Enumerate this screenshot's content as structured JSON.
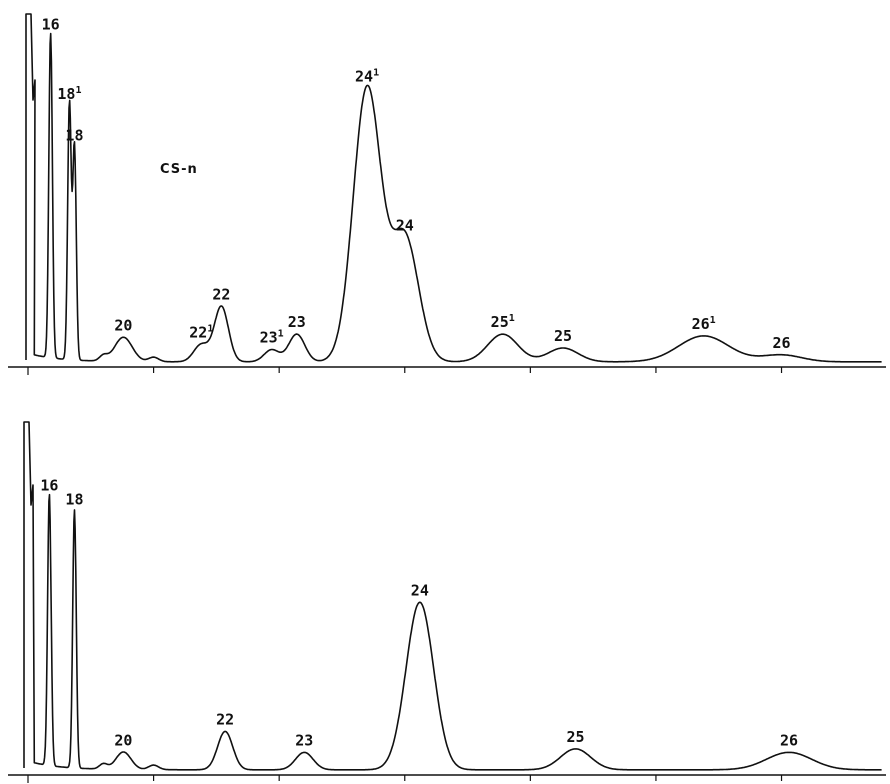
{
  "chart_data": [
    {
      "type": "line",
      "title": "",
      "xlabel": "",
      "ylabel": "",
      "annotation": "CS-n",
      "xlim": [
        0,
        34
      ],
      "ylim": [
        0,
        100
      ],
      "grid": false,
      "x_ticks": [
        5,
        10,
        15,
        20,
        25,
        30
      ],
      "peaks": [
        {
          "label": "16",
          "prime": "",
          "x": 0.9,
          "height": 94,
          "width": 0.07
        },
        {
          "label": "18",
          "prime": "1",
          "x": 1.65,
          "height": 74,
          "width": 0.07
        },
        {
          "label": "18",
          "prime": "",
          "x": 1.85,
          "height": 62,
          "width": 0.07
        },
        {
          "label": "20",
          "prime": "",
          "x": 3.8,
          "height": 7,
          "width": 0.35
        },
        {
          "label": "22",
          "prime": "1",
          "x": 6.9,
          "height": 5,
          "width": 0.3
        },
        {
          "label": "22",
          "prime": "",
          "x": 7.7,
          "height": 16,
          "width": 0.28
        },
        {
          "label": "23",
          "prime": "1",
          "x": 9.7,
          "height": 3.5,
          "width": 0.3
        },
        {
          "label": "23",
          "prime": "",
          "x": 10.7,
          "height": 8,
          "width": 0.32
        },
        {
          "label": "24",
          "prime": "1",
          "x": 13.5,
          "height": 79,
          "width": 0.55
        },
        {
          "label": "24",
          "prime": "",
          "x": 15.0,
          "height": 36,
          "width": 0.55
        },
        {
          "label": "25",
          "prime": "1",
          "x": 18.9,
          "height": 8,
          "width": 0.6
        },
        {
          "label": "25",
          "prime": "",
          "x": 21.3,
          "height": 4,
          "width": 0.6
        },
        {
          "label": "26",
          "prime": "1",
          "x": 26.9,
          "height": 7.5,
          "width": 1.0
        },
        {
          "label": "26",
          "prime": "",
          "x": 30.0,
          "height": 2,
          "width": 0.8
        }
      ]
    },
    {
      "type": "line",
      "title": "",
      "xlabel": "",
      "ylabel": "",
      "xlim": [
        0,
        34
      ],
      "ylim": [
        0,
        100
      ],
      "grid": false,
      "x_ticks": [
        5,
        10,
        15,
        20,
        25,
        30
      ],
      "peaks": [
        {
          "label": "16",
          "prime": "",
          "x": 0.85,
          "height": 78,
          "width": 0.07
        },
        {
          "label": "18",
          "prime": "",
          "x": 1.85,
          "height": 74,
          "width": 0.07
        },
        {
          "label": "20",
          "prime": "",
          "x": 3.8,
          "height": 5,
          "width": 0.3
        },
        {
          "label": "22",
          "prime": "",
          "x": 7.85,
          "height": 11,
          "width": 0.3
        },
        {
          "label": "23",
          "prime": "",
          "x": 11.0,
          "height": 5,
          "width": 0.35
        },
        {
          "label": "24",
          "prime": "",
          "x": 15.6,
          "height": 48,
          "width": 0.55
        },
        {
          "label": "25",
          "prime": "",
          "x": 21.8,
          "height": 6,
          "width": 0.6
        },
        {
          "label": "26",
          "prime": "",
          "x": 30.3,
          "height": 5,
          "width": 0.9
        }
      ]
    }
  ]
}
